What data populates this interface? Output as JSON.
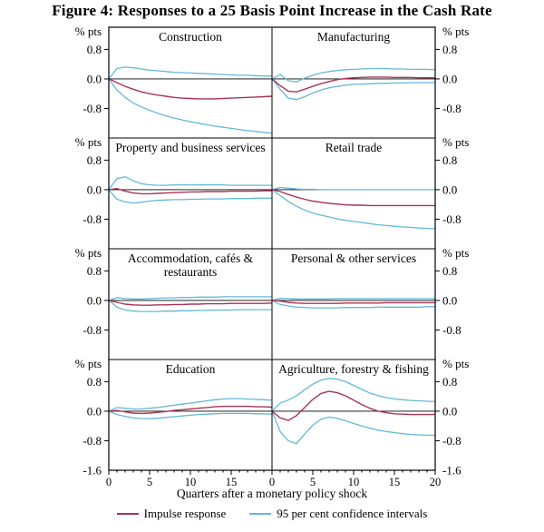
{
  "figure": {
    "title": "Figure 4: Responses to a 25 Basis Point Increase in the Cash Rate",
    "y_axis_unit": "% pts",
    "x_axis_label": "Quarters after a monetary policy shock",
    "legend": [
      {
        "label": "Impulse response",
        "color": "#ab3457"
      },
      {
        "label": "95 per cent confidence intervals",
        "color": "#64b8d8"
      }
    ]
  },
  "chart_data": {
    "type": "line",
    "layout": "small-multiples 4 rows x 2 cols, shared axes",
    "x": [
      0,
      1,
      2,
      3,
      4,
      5,
      6,
      7,
      8,
      9,
      10,
      11,
      12,
      13,
      14,
      15,
      16,
      17,
      18,
      19,
      20
    ],
    "xlabel": "Quarters after a monetary policy shock",
    "x_tick_labels": [
      [
        0,
        5,
        10,
        15
      ],
      [
        0,
        5,
        10,
        15,
        20
      ]
    ],
    "y_ticks": [
      0.8,
      0.0,
      -0.8
    ],
    "y_bottom_tick": -1.6,
    "ylim": [
      -1.6,
      1.4
    ],
    "colors": {
      "impulse": "#ab3457",
      "ci": "#64b8d8",
      "axis": "#000000"
    },
    "series_names": [
      "Impulse response",
      "95 per cent confidence intervals"
    ],
    "panels": [
      {
        "title": "Construction",
        "impulse": [
          0,
          -0.1,
          -0.2,
          -0.28,
          -0.35,
          -0.4,
          -0.44,
          -0.47,
          -0.5,
          -0.52,
          -0.53,
          -0.54,
          -0.54,
          -0.54,
          -0.53,
          -0.52,
          -0.51,
          -0.5,
          -0.49,
          -0.48,
          -0.47
        ],
        "ci_upper": [
          0,
          0.28,
          0.32,
          0.3,
          0.27,
          0.24,
          0.22,
          0.2,
          0.18,
          0.17,
          0.16,
          0.15,
          0.14,
          0.13,
          0.12,
          0.11,
          0.1,
          0.1,
          0.09,
          0.08,
          0.08
        ],
        "ci_lower": [
          0,
          -0.3,
          -0.5,
          -0.65,
          -0.76,
          -0.85,
          -0.93,
          -1.0,
          -1.06,
          -1.11,
          -1.16,
          -1.2,
          -1.24,
          -1.28,
          -1.31,
          -1.34,
          -1.37,
          -1.4,
          -1.42,
          -1.45,
          -1.47
        ]
      },
      {
        "title": "Manufacturing",
        "impulse": [
          0,
          -0.18,
          -0.33,
          -0.35,
          -0.28,
          -0.2,
          -0.13,
          -0.07,
          -0.02,
          0.01,
          0.03,
          0.04,
          0.05,
          0.05,
          0.05,
          0.04,
          0.04,
          0.04,
          0.03,
          0.03,
          0.03
        ],
        "ci_upper": [
          0,
          0.12,
          -0.05,
          -0.08,
          0.02,
          0.1,
          0.16,
          0.2,
          0.23,
          0.25,
          0.26,
          0.27,
          0.28,
          0.28,
          0.28,
          0.27,
          0.27,
          0.26,
          0.26,
          0.26,
          0.25
        ],
        "ci_lower": [
          0,
          -0.28,
          -0.52,
          -0.56,
          -0.48,
          -0.38,
          -0.3,
          -0.24,
          -0.2,
          -0.17,
          -0.15,
          -0.14,
          -0.13,
          -0.12,
          -0.12,
          -0.11,
          -0.11,
          -0.1,
          -0.1,
          -0.1,
          -0.1
        ]
      },
      {
        "title": "Property and business services",
        "impulse": [
          0,
          0.03,
          -0.04,
          -0.09,
          -0.11,
          -0.11,
          -0.1,
          -0.09,
          -0.08,
          -0.07,
          -0.06,
          -0.06,
          -0.05,
          -0.05,
          -0.05,
          -0.04,
          -0.04,
          -0.04,
          -0.04,
          -0.03,
          -0.03
        ],
        "ci_upper": [
          0,
          0.3,
          0.35,
          0.24,
          0.16,
          0.13,
          0.12,
          0.12,
          0.13,
          0.13,
          0.13,
          0.13,
          0.13,
          0.13,
          0.13,
          0.12,
          0.12,
          0.12,
          0.12,
          0.12,
          0.12
        ],
        "ci_lower": [
          0,
          -0.26,
          -0.33,
          -0.36,
          -0.34,
          -0.31,
          -0.29,
          -0.28,
          -0.27,
          -0.27,
          -0.26,
          -0.26,
          -0.25,
          -0.25,
          -0.25,
          -0.24,
          -0.24,
          -0.24,
          -0.23,
          -0.23,
          -0.23
        ]
      },
      {
        "title": "Retail trade",
        "impulse": [
          0,
          -0.05,
          -0.13,
          -0.2,
          -0.26,
          -0.31,
          -0.34,
          -0.37,
          -0.39,
          -0.41,
          -0.42,
          -0.42,
          -0.43,
          -0.43,
          -0.43,
          -0.43,
          -0.43,
          -0.43,
          -0.43,
          -0.43,
          -0.43
        ],
        "ci_upper": [
          0,
          0.06,
          0.04,
          0.02,
          0.01,
          0.01,
          0.0,
          0.0,
          0.0,
          0.0,
          0.0,
          0.0,
          0.0,
          0.0,
          0.0,
          0.0,
          0.0,
          0.0,
          0.0,
          0.0,
          0.0
        ],
        "ci_lower": [
          0,
          -0.16,
          -0.32,
          -0.45,
          -0.55,
          -0.63,
          -0.69,
          -0.74,
          -0.79,
          -0.83,
          -0.86,
          -0.89,
          -0.92,
          -0.95,
          -0.97,
          -0.99,
          -1.01,
          -1.02,
          -1.04,
          -1.05,
          -1.06
        ]
      },
      {
        "title": "Accommodation, cafés & restaurants",
        "impulse": [
          0,
          -0.05,
          -0.1,
          -0.12,
          -0.13,
          -0.13,
          -0.12,
          -0.12,
          -0.11,
          -0.11,
          -0.1,
          -0.1,
          -0.09,
          -0.09,
          -0.09,
          -0.08,
          -0.08,
          -0.08,
          -0.08,
          -0.08,
          -0.07
        ],
        "ci_upper": [
          0,
          0.08,
          0.05,
          0.04,
          0.04,
          0.05,
          0.06,
          0.07,
          0.07,
          0.08,
          0.08,
          0.09,
          0.09,
          0.09,
          0.1,
          0.1,
          0.1,
          0.1,
          0.1,
          0.1,
          0.1
        ],
        "ci_lower": [
          0,
          -0.18,
          -0.26,
          -0.29,
          -0.3,
          -0.3,
          -0.3,
          -0.29,
          -0.29,
          -0.28,
          -0.28,
          -0.27,
          -0.27,
          -0.26,
          -0.26,
          -0.26,
          -0.25,
          -0.25,
          -0.25,
          -0.25,
          -0.25
        ]
      },
      {
        "title": "Personal & other services",
        "impulse": [
          0,
          -0.02,
          -0.05,
          -0.07,
          -0.08,
          -0.08,
          -0.08,
          -0.08,
          -0.08,
          -0.07,
          -0.07,
          -0.07,
          -0.07,
          -0.07,
          -0.06,
          -0.06,
          -0.06,
          -0.06,
          -0.06,
          -0.06,
          -0.06
        ],
        "ci_upper": [
          0,
          0.06,
          0.05,
          0.04,
          0.04,
          0.04,
          0.04,
          0.04,
          0.05,
          0.05,
          0.05,
          0.05,
          0.05,
          0.05,
          0.05,
          0.05,
          0.05,
          0.05,
          0.05,
          0.05,
          0.05
        ],
        "ci_lower": [
          0,
          -0.11,
          -0.15,
          -0.18,
          -0.19,
          -0.2,
          -0.2,
          -0.2,
          -0.2,
          -0.19,
          -0.19,
          -0.19,
          -0.19,
          -0.18,
          -0.18,
          -0.18,
          -0.18,
          -0.18,
          -0.18,
          -0.17,
          -0.17
        ]
      },
      {
        "title": "Education",
        "impulse": [
          0,
          0.02,
          -0.02,
          -0.05,
          -0.06,
          -0.05,
          -0.03,
          -0.01,
          0.02,
          0.04,
          0.06,
          0.08,
          0.1,
          0.12,
          0.13,
          0.13,
          0.13,
          0.13,
          0.12,
          0.12,
          0.11
        ],
        "ci_upper": [
          0,
          0.1,
          0.08,
          0.06,
          0.06,
          0.08,
          0.1,
          0.13,
          0.16,
          0.19,
          0.22,
          0.25,
          0.28,
          0.31,
          0.33,
          0.34,
          0.34,
          0.33,
          0.32,
          0.31,
          0.3
        ],
        "ci_lower": [
          0,
          -0.09,
          -0.14,
          -0.18,
          -0.2,
          -0.2,
          -0.19,
          -0.17,
          -0.15,
          -0.13,
          -0.11,
          -0.09,
          -0.08,
          -0.07,
          -0.06,
          -0.06,
          -0.06,
          -0.06,
          -0.07,
          -0.07,
          -0.08
        ]
      },
      {
        "title": "Agriculture, forestry & fishing",
        "impulse": [
          0,
          -0.18,
          -0.25,
          -0.12,
          0.1,
          0.32,
          0.48,
          0.54,
          0.5,
          0.42,
          0.3,
          0.18,
          0.08,
          0.0,
          -0.04,
          -0.07,
          -0.08,
          -0.09,
          -0.09,
          -0.09,
          -0.09
        ],
        "ci_upper": [
          0,
          0.22,
          0.3,
          0.42,
          0.58,
          0.73,
          0.84,
          0.89,
          0.87,
          0.8,
          0.7,
          0.59,
          0.49,
          0.42,
          0.37,
          0.33,
          0.31,
          0.29,
          0.28,
          0.27,
          0.26
        ],
        "ci_lower": [
          0,
          -0.55,
          -0.8,
          -0.88,
          -0.62,
          -0.38,
          -0.22,
          -0.16,
          -0.19,
          -0.26,
          -0.33,
          -0.4,
          -0.46,
          -0.51,
          -0.55,
          -0.58,
          -0.61,
          -0.63,
          -0.64,
          -0.65,
          -0.65
        ]
      }
    ]
  }
}
